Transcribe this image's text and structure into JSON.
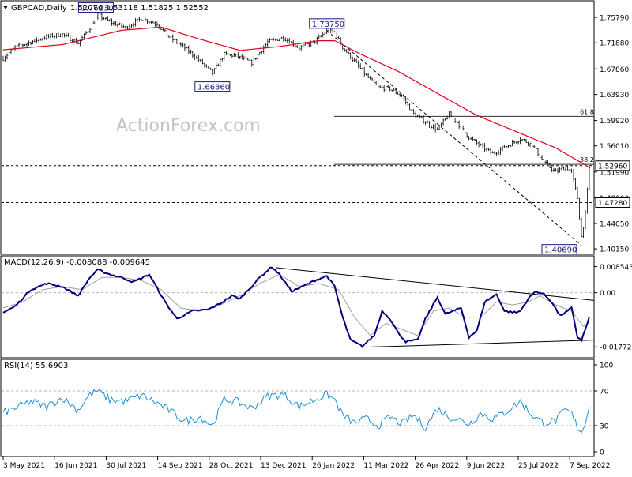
{
  "header": {
    "symbol": "GBPCAD,Daily",
    "ohlc": "1.52076 1.53118 1.51825 1.52552"
  },
  "watermark": "ActionForex.com",
  "colors": {
    "candle": "#000000",
    "ma": "#e0001b",
    "macd": "#00007e",
    "signal": "#a0a0a0",
    "rsi": "#1f8fd8",
    "grid": "#b4b4b4"
  },
  "chart_data": [
    {
      "type": "candlestick",
      "title": "",
      "y_ticks": [
        "1.75790",
        "1.71880",
        "1.67860",
        "1.63930",
        "1.59920",
        "1.56010",
        "1.51990",
        "1.48000",
        "1.44050",
        "1.40150"
      ],
      "ylim": [
        1.398,
        1.775
      ],
      "x_labels": [
        "3 May 2021",
        "16 Jun 2021",
        "30 Jul 2021",
        "14 Sep 2021",
        "28 Oct 2021",
        "13 Dec 2021",
        "26 Jan 2022",
        "11 Mar 2022",
        "26 Apr 2022",
        "9 Jun 2022",
        "25 Jul 2022",
        "7 Sep 2022"
      ],
      "price_anchors": [
        [
          0,
          1.695
        ],
        [
          6,
          1.712
        ],
        [
          14,
          1.72
        ],
        [
          22,
          1.728
        ],
        [
          30,
          1.732
        ],
        [
          38,
          1.718
        ],
        [
          44,
          1.742
        ],
        [
          48,
          1.762
        ],
        [
          54,
          1.751
        ],
        [
          62,
          1.742
        ],
        [
          70,
          1.756
        ],
        [
          78,
          1.748
        ],
        [
          84,
          1.728
        ],
        [
          92,
          1.711
        ],
        [
          100,
          1.69
        ],
        [
          106,
          1.672
        ],
        [
          112,
          1.701
        ],
        [
          118,
          1.699
        ],
        [
          126,
          1.688
        ],
        [
          134,
          1.72
        ],
        [
          142,
          1.727
        ],
        [
          150,
          1.711
        ],
        [
          158,
          1.721
        ],
        [
          164,
          1.737
        ],
        [
          168,
          1.735
        ],
        [
          172,
          1.712
        ],
        [
          178,
          1.69
        ],
        [
          184,
          1.668
        ],
        [
          190,
          1.65
        ],
        [
          196,
          1.648
        ],
        [
          202,
          1.637
        ],
        [
          208,
          1.609
        ],
        [
          214,
          1.597
        ],
        [
          220,
          1.585
        ],
        [
          226,
          1.609
        ],
        [
          230,
          1.596
        ],
        [
          236,
          1.573
        ],
        [
          242,
          1.56
        ],
        [
          248,
          1.548
        ],
        [
          254,
          1.558
        ],
        [
          262,
          1.571
        ],
        [
          268,
          1.562
        ],
        [
          274,
          1.535
        ],
        [
          280,
          1.52
        ],
        [
          285,
          1.528
        ],
        [
          288,
          1.52
        ],
        [
          291,
          1.48
        ],
        [
          293,
          1.42
        ],
        [
          295,
          1.455
        ],
        [
          297,
          1.5255
        ]
      ],
      "ma_anchors": [
        [
          0,
          1.708
        ],
        [
          30,
          1.716
        ],
        [
          60,
          1.738
        ],
        [
          80,
          1.743
        ],
        [
          100,
          1.724
        ],
        [
          120,
          1.707
        ],
        [
          140,
          1.713
        ],
        [
          160,
          1.722
        ],
        [
          168,
          1.722
        ],
        [
          180,
          1.703
        ],
        [
          200,
          1.675
        ],
        [
          220,
          1.641
        ],
        [
          240,
          1.607
        ],
        [
          260,
          1.582
        ],
        [
          280,
          1.557
        ],
        [
          297,
          1.527
        ]
      ],
      "levels": [
        {
          "label": "1.52960",
          "value": 1.5296,
          "style": "dashed",
          "boxed": true
        },
        {
          "label": "1.47280",
          "value": 1.4728,
          "style": "dashed",
          "boxed": true
        }
      ],
      "fibonacci": [
        {
          "label": "61.8",
          "value": 1.6055
        },
        {
          "label": "38.2",
          "value": 1.5316
        }
      ],
      "callouts": [
        {
          "label": "1.76230",
          "index": 47,
          "value": 1.7623
        },
        {
          "label": "1.66360",
          "index": 106,
          "value": 1.6636
        },
        {
          "label": "1.73750",
          "index": 164,
          "value": 1.7375
        },
        {
          "label": "1.40690",
          "index": 293,
          "value": 1.4069
        }
      ],
      "trendline": {
        "from": [
          164,
          1.7375
        ],
        "to": [
          293,
          1.4069
        ]
      }
    },
    {
      "type": "line",
      "title": "MACD(12,26,9) -0.008088 -0.009645",
      "y_ticks": [
        "0.008543",
        "0.00",
        "-0.017722"
      ],
      "ylim": [
        -0.0205,
        0.0105
      ],
      "macd_anchors": [
        [
          0,
          -0.0065
        ],
        [
          6,
          -0.0045
        ],
        [
          14,
          0.001
        ],
        [
          22,
          0.003
        ],
        [
          30,
          0.002
        ],
        [
          38,
          -0.001
        ],
        [
          44,
          0.005
        ],
        [
          48,
          0.0075
        ],
        [
          54,
          0.006
        ],
        [
          60,
          0.005
        ],
        [
          66,
          0.0035
        ],
        [
          74,
          0.006
        ],
        [
          82,
          -0.003
        ],
        [
          88,
          -0.0085
        ],
        [
          96,
          -0.006
        ],
        [
          104,
          -0.0055
        ],
        [
          110,
          -0.0035
        ],
        [
          116,
          -0.001
        ],
        [
          120,
          -0.002
        ],
        [
          130,
          0.005
        ],
        [
          136,
          0.0085
        ],
        [
          140,
          0.006
        ],
        [
          146,
          0.0005
        ],
        [
          150,
          0.0015
        ],
        [
          158,
          0.004
        ],
        [
          164,
          0.0055
        ],
        [
          168,
          0.002
        ],
        [
          172,
          -0.008
        ],
        [
          176,
          -0.0155
        ],
        [
          182,
          -0.0175
        ],
        [
          188,
          -0.014
        ],
        [
          192,
          -0.006
        ],
        [
          196,
          -0.0085
        ],
        [
          200,
          -0.013
        ],
        [
          204,
          -0.016
        ],
        [
          210,
          -0.0155
        ],
        [
          214,
          -0.0085
        ],
        [
          220,
          -0.0015
        ],
        [
          224,
          -0.007
        ],
        [
          228,
          -0.006
        ],
        [
          232,
          -0.005
        ],
        [
          236,
          -0.0145
        ],
        [
          240,
          -0.0125
        ],
        [
          244,
          -0.003
        ],
        [
          250,
          -0.0005
        ],
        [
          254,
          -0.006
        ],
        [
          260,
          -0.0065
        ],
        [
          262,
          -0.006
        ],
        [
          266,
          -0.002
        ],
        [
          270,
          0.0005
        ],
        [
          274,
          -0.0005
        ],
        [
          278,
          -0.003
        ],
        [
          282,
          -0.0075
        ],
        [
          285,
          -0.0065
        ],
        [
          288,
          -0.005
        ],
        [
          291,
          -0.0145
        ],
        [
          293,
          -0.0155
        ],
        [
          295,
          -0.012
        ],
        [
          297,
          -0.008
        ]
      ],
      "signal_anchors": [
        [
          0,
          -0.005
        ],
        [
          10,
          -0.003
        ],
        [
          20,
          0.001
        ],
        [
          30,
          0.002
        ],
        [
          40,
          0.001
        ],
        [
          50,
          0.005
        ],
        [
          60,
          0.005
        ],
        [
          70,
          0.004
        ],
        [
          80,
          0.001
        ],
        [
          90,
          -0.005
        ],
        [
          100,
          -0.006
        ],
        [
          110,
          -0.004
        ],
        [
          120,
          -0.001
        ],
        [
          130,
          0.003
        ],
        [
          140,
          0.006
        ],
        [
          150,
          0.002
        ],
        [
          160,
          0.003
        ],
        [
          170,
          0.001
        ],
        [
          178,
          -0.008
        ],
        [
          186,
          -0.014
        ],
        [
          194,
          -0.01
        ],
        [
          202,
          -0.012
        ],
        [
          210,
          -0.014
        ],
        [
          218,
          -0.006
        ],
        [
          226,
          -0.005
        ],
        [
          234,
          -0.008
        ],
        [
          242,
          -0.008
        ],
        [
          250,
          -0.003
        ],
        [
          258,
          -0.004
        ],
        [
          266,
          -0.003
        ],
        [
          272,
          -0.001
        ],
        [
          280,
          -0.004
        ],
        [
          288,
          -0.006
        ],
        [
          294,
          -0.011
        ],
        [
          297,
          -0.0096
        ]
      ],
      "upper_trendline": {
        "from": [
          138,
          0.0082
        ],
        "to": [
          297,
          -0.0025
        ]
      },
      "lower_trendline": {
        "from": [
          185,
          -0.0178
        ],
        "to": [
          297,
          -0.0155
        ]
      }
    },
    {
      "type": "line",
      "title": "RSI(14) 55.6903",
      "y_ticks": [
        "100",
        "70",
        "30",
        "0"
      ],
      "levels": [
        70,
        30
      ],
      "ylim": [
        0,
        100
      ],
      "rsi_anchors": [
        [
          0,
          45
        ],
        [
          8,
          52
        ],
        [
          14,
          58
        ],
        [
          22,
          52
        ],
        [
          30,
          62
        ],
        [
          38,
          48
        ],
        [
          44,
          66
        ],
        [
          48,
          70
        ],
        [
          54,
          60
        ],
        [
          62,
          58
        ],
        [
          70,
          65
        ],
        [
          78,
          56
        ],
        [
          84,
          48
        ],
        [
          92,
          35
        ],
        [
          100,
          40
        ],
        [
          106,
          30
        ],
        [
          112,
          60
        ],
        [
          118,
          58
        ],
        [
          126,
          50
        ],
        [
          134,
          64
        ],
        [
          142,
          66
        ],
        [
          150,
          52
        ],
        [
          158,
          60
        ],
        [
          164,
          66
        ],
        [
          168,
          60
        ],
        [
          172,
          42
        ],
        [
          178,
          33
        ],
        [
          184,
          38
        ],
        [
          190,
          30
        ],
        [
          196,
          40
        ],
        [
          202,
          32
        ],
        [
          208,
          42
        ],
        [
          214,
          28
        ],
        [
          220,
          50
        ],
        [
          226,
          40
        ],
        [
          230,
          38
        ],
        [
          236,
          32
        ],
        [
          242,
          44
        ],
        [
          248,
          38
        ],
        [
          254,
          45
        ],
        [
          262,
          58
        ],
        [
          268,
          42
        ],
        [
          274,
          33
        ],
        [
          280,
          36
        ],
        [
          285,
          48
        ],
        [
          288,
          44
        ],
        [
          291,
          28
        ],
        [
          293,
          24
        ],
        [
          295,
          32
        ],
        [
          297,
          55.69
        ]
      ]
    }
  ]
}
